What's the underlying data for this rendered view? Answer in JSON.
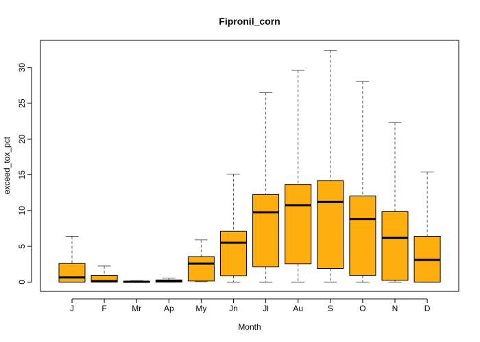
{
  "chart_data": {
    "type": "boxplot",
    "title": "Fipronil_corn",
    "xlabel": "Month",
    "ylabel": "exceed_tox_pct",
    "ylim": [
      -1.3,
      33.8
    ],
    "yticks": [
      0,
      5,
      10,
      15,
      20,
      25,
      30
    ],
    "grid": false,
    "legend": "none",
    "categories": [
      "J",
      "F",
      "Mr",
      "Ap",
      "My",
      "Jn",
      "Jl",
      "Au",
      "S",
      "O",
      "N",
      "D"
    ],
    "boxes": [
      {
        "min": 0.0,
        "q1": 0.0,
        "median": 0.65,
        "q3": 2.6,
        "max": 6.4
      },
      {
        "min": 0.0,
        "q1": 0.0,
        "median": 0.15,
        "q3": 0.95,
        "max": 2.25
      },
      {
        "min": 0.0,
        "q1": 0.0,
        "median": 0.05,
        "q3": 0.1,
        "max": 0.2
      },
      {
        "min": 0.0,
        "q1": 0.0,
        "median": 0.15,
        "q3": 0.3,
        "max": 0.55
      },
      {
        "min": 0.05,
        "q1": 0.15,
        "median": 2.6,
        "q3": 3.55,
        "max": 5.9
      },
      {
        "min": 0.0,
        "q1": 0.9,
        "median": 5.5,
        "q3": 7.1,
        "max": 15.1
      },
      {
        "min": 0.0,
        "q1": 2.15,
        "median": 9.75,
        "q3": 12.25,
        "max": 26.5
      },
      {
        "min": 0.0,
        "q1": 2.55,
        "median": 10.75,
        "q3": 13.65,
        "max": 29.6
      },
      {
        "min": 0.0,
        "q1": 1.9,
        "median": 11.2,
        "q3": 14.2,
        "max": 32.4
      },
      {
        "min": 0.0,
        "q1": 0.95,
        "median": 8.8,
        "q3": 12.05,
        "max": 28.05
      },
      {
        "min": 0.0,
        "q1": 0.25,
        "median": 6.2,
        "q3": 9.85,
        "max": 22.3
      },
      {
        "min": 0.0,
        "q1": 0.0,
        "median": 3.1,
        "q3": 6.4,
        "max": 15.4
      }
    ],
    "colors": {
      "box_fill": "#FFAE0F",
      "box_stroke": "#000000",
      "whisker": "#555555",
      "axis": "#000000"
    }
  }
}
